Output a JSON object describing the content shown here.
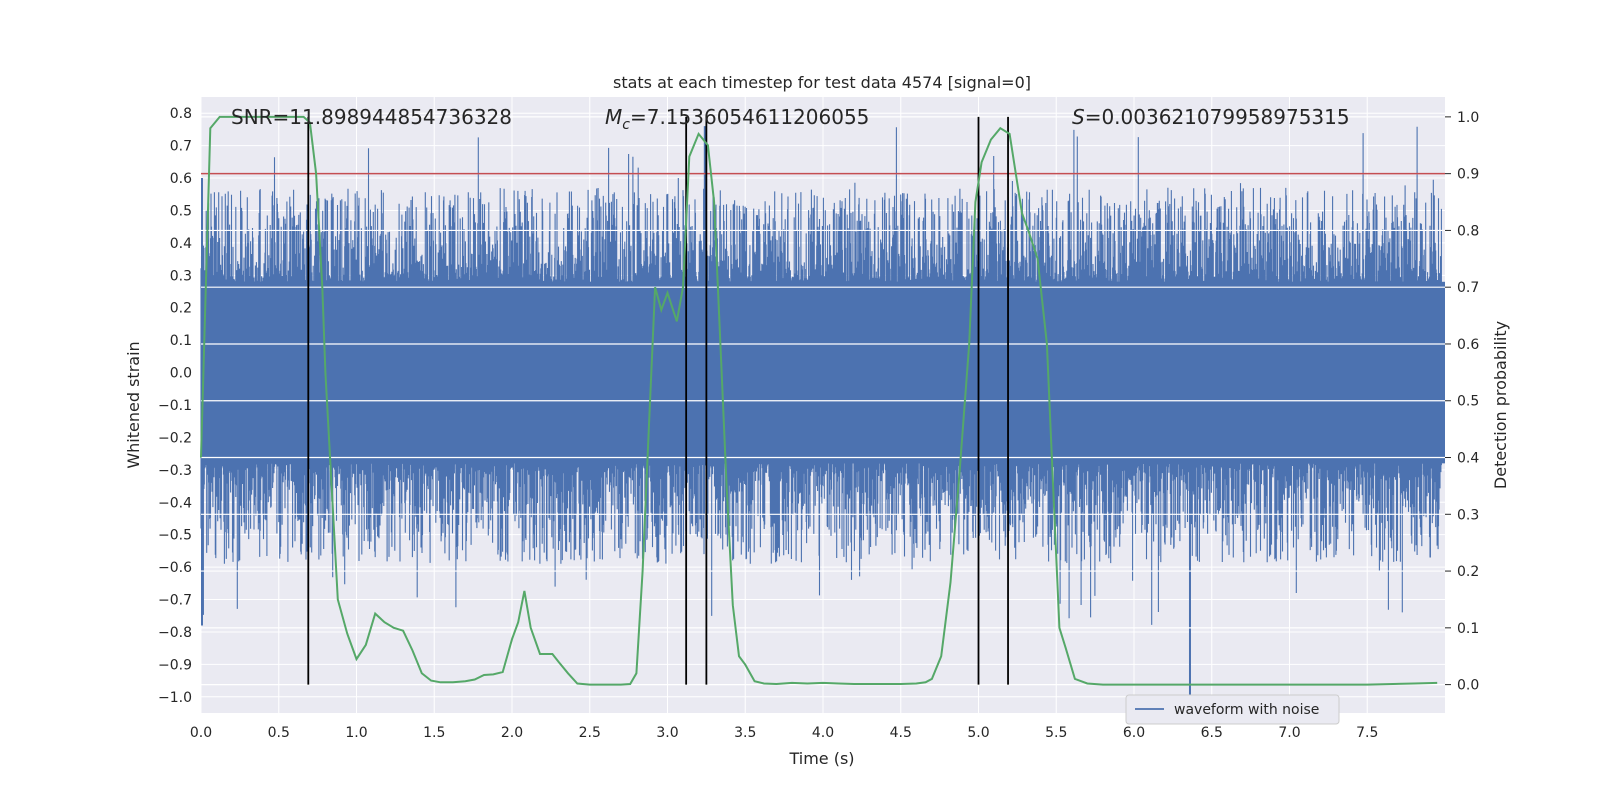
{
  "chart_data": {
    "type": "line",
    "title": "stats at each timestep for test data 4574 [signal=0]",
    "xlabel": "Time (s)",
    "ylabel_left": "Whitened strain",
    "ylabel_right": "Detection probability",
    "xlim": [
      0.0,
      8.0
    ],
    "ylim_left": [
      -1.05,
      0.85
    ],
    "ylim_right": [
      -0.05,
      1.035
    ],
    "x_ticks": [
      0.0,
      0.5,
      1.0,
      1.5,
      2.0,
      2.5,
      3.0,
      3.5,
      4.0,
      4.5,
      5.0,
      5.5,
      6.0,
      6.5,
      7.0,
      7.5
    ],
    "x_tick_labels": [
      "0.0",
      "0.5",
      "1.0",
      "1.5",
      "2.0",
      "2.5",
      "3.0",
      "3.5",
      "4.0",
      "4.5",
      "5.0",
      "5.5",
      "6.0",
      "6.5",
      "7.0",
      "7.5"
    ],
    "y_left_ticks": [
      0.8,
      0.7,
      0.6,
      0.5,
      0.4,
      0.3,
      0.2,
      0.1,
      0.0,
      -0.1,
      -0.2,
      -0.3,
      -0.4,
      -0.5,
      -0.6,
      -0.7,
      -0.8,
      -0.9,
      -1.0
    ],
    "y_left_tick_labels": [
      "0.8",
      "0.7",
      "0.6",
      "0.5",
      "0.4",
      "0.3",
      "0.2",
      "0.1",
      "0.0",
      "−0.1",
      "−0.2",
      "−0.3",
      "−0.4",
      "−0.5",
      "−0.6",
      "−0.7",
      "−0.8",
      "−0.9",
      "−1.0"
    ],
    "y_right_ticks": [
      1.0,
      0.9,
      0.8,
      0.7,
      0.6,
      0.5,
      0.4,
      0.3,
      0.2,
      0.1,
      0.0
    ],
    "y_right_tick_labels": [
      "1.0",
      "0.9",
      "0.8",
      "0.7",
      "0.6",
      "0.5",
      "0.4",
      "0.3",
      "0.2",
      "0.1",
      "0.0"
    ],
    "threshold": 0.9,
    "vertical_lines_x": [
      0.69,
      3.12,
      3.25,
      5.0,
      5.19
    ],
    "annotations": {
      "snr": "SNR=11.898944854736328",
      "mc_symbol": "M",
      "mc_sub": "c",
      "mc_value": "=7.1536054611206055",
      "s_symbol": "S",
      "s_value": "=0.003621079958975315"
    },
    "legend": [
      "waveform with noise"
    ],
    "series": [
      {
        "name": "waveform with noise",
        "axis": "left",
        "style": "noise band",
        "core_amplitude": 0.28,
        "typical_peak": 0.45,
        "max_value": 0.76,
        "min_value": -1.0
      },
      {
        "name": "detection probability",
        "axis": "right",
        "x": [
          0.0,
          0.06,
          0.12,
          0.2,
          0.3,
          0.4,
          0.5,
          0.6,
          0.66,
          0.7,
          0.74,
          0.78,
          0.8,
          0.84,
          0.88,
          0.94,
          1.0,
          1.06,
          1.12,
          1.18,
          1.24,
          1.3,
          1.36,
          1.42,
          1.48,
          1.54,
          1.62,
          1.7,
          1.76,
          1.82,
          1.88,
          1.94,
          2.0,
          2.04,
          2.08,
          2.12,
          2.18,
          2.26,
          2.3,
          2.36,
          2.42,
          2.5,
          2.6,
          2.7,
          2.76,
          2.8,
          2.84,
          2.88,
          2.92,
          2.96,
          3.0,
          3.06,
          3.1,
          3.14,
          3.2,
          3.26,
          3.3,
          3.34,
          3.38,
          3.42,
          3.46,
          3.5,
          3.56,
          3.62,
          3.7,
          3.8,
          3.9,
          4.0,
          4.1,
          4.2,
          4.3,
          4.4,
          4.5,
          4.6,
          4.66,
          4.7,
          4.76,
          4.82,
          4.88,
          4.94,
          4.98,
          5.02,
          5.08,
          5.14,
          5.2,
          5.24,
          5.28,
          5.32,
          5.38,
          5.44,
          5.48,
          5.52,
          5.56,
          5.62,
          5.7,
          5.8,
          6.0,
          6.5,
          7.0,
          7.5,
          7.8,
          7.95
        ],
        "values": [
          0.4,
          0.98,
          1.0,
          1.0,
          1.0,
          1.0,
          1.0,
          1.0,
          1.0,
          0.99,
          0.9,
          0.7,
          0.55,
          0.35,
          0.15,
          0.09,
          0.045,
          0.07,
          0.125,
          0.11,
          0.1,
          0.095,
          0.06,
          0.02,
          0.007,
          0.004,
          0.004,
          0.006,
          0.009,
          0.017,
          0.018,
          0.022,
          0.08,
          0.11,
          0.165,
          0.1,
          0.054,
          0.054,
          0.04,
          0.02,
          0.002,
          0.0,
          0.0,
          0.0,
          0.001,
          0.02,
          0.2,
          0.45,
          0.7,
          0.66,
          0.69,
          0.64,
          0.7,
          0.93,
          0.97,
          0.95,
          0.85,
          0.6,
          0.35,
          0.14,
          0.05,
          0.035,
          0.006,
          0.002,
          0.001,
          0.003,
          0.002,
          0.003,
          0.002,
          0.001,
          0.001,
          0.001,
          0.001,
          0.002,
          0.004,
          0.01,
          0.05,
          0.18,
          0.38,
          0.6,
          0.85,
          0.92,
          0.96,
          0.98,
          0.97,
          0.9,
          0.83,
          0.8,
          0.75,
          0.6,
          0.35,
          0.1,
          0.065,
          0.01,
          0.002,
          0.0,
          0.0,
          0.0,
          0.0,
          0.0,
          0.002,
          0.003
        ]
      }
    ]
  }
}
